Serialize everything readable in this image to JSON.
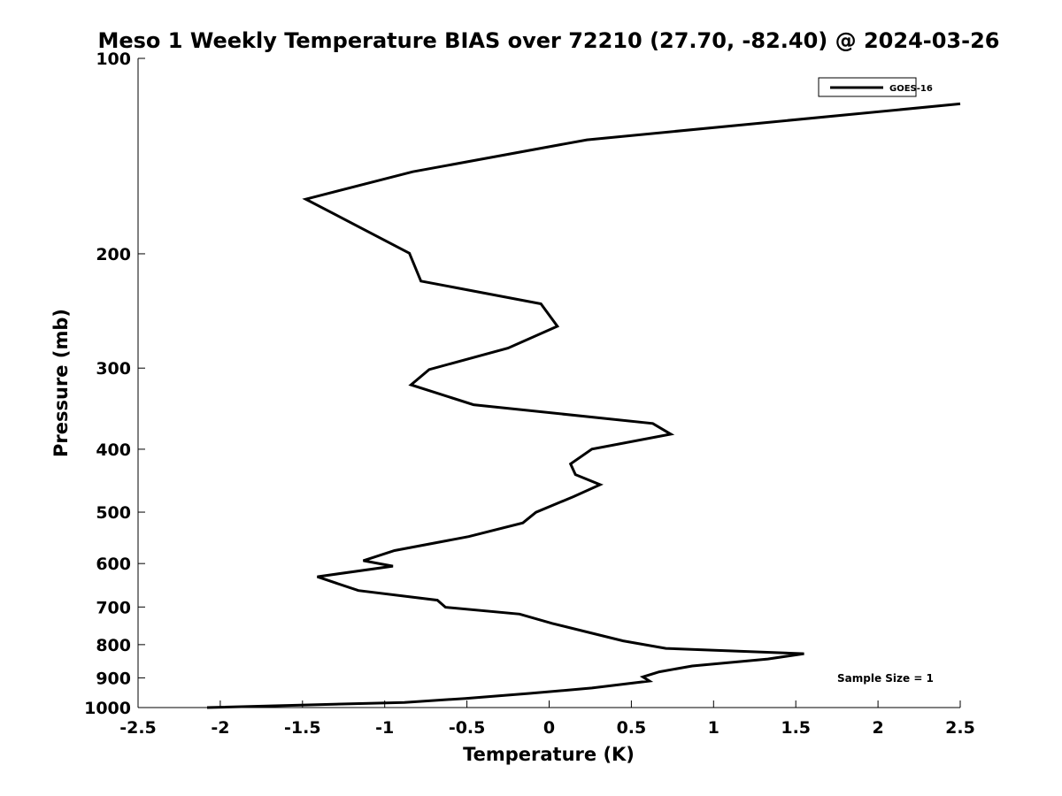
{
  "chart_data": {
    "type": "line",
    "title": "Meso 1 Weekly Temperature BIAS over 72210 (27.70, -82.40) @ 2024-03-26",
    "xlabel": "Temperature (K)",
    "ylabel": "Pressure (mb)",
    "xlim": [
      -2.5,
      2.5
    ],
    "ylim": [
      100,
      1000
    ],
    "y_scale": "log",
    "y_reversed": true,
    "x_ticks": [
      "-2.5",
      "-2",
      "-1.5",
      "-1",
      "-0.5",
      "0",
      "0.5",
      "1",
      "1.5",
      "2",
      "2.5"
    ],
    "x_tick_values": [
      -2.5,
      -2,
      -1.5,
      -1,
      -0.5,
      0,
      0.5,
      1,
      1.5,
      2,
      2.5
    ],
    "y_ticks": [
      "100",
      "200",
      "300",
      "400",
      "500",
      "600",
      "700",
      "800",
      "900",
      "1000"
    ],
    "y_tick_values": [
      100,
      200,
      300,
      400,
      500,
      600,
      700,
      800,
      900,
      1000
    ],
    "grid": false,
    "legend_position": "top-right",
    "series": [
      {
        "name": "GOES-16",
        "color": "#000000",
        "points": [
          [
            2.5,
            117.5
          ],
          [
            0.23,
            133.5
          ],
          [
            -0.83,
            149.5
          ],
          [
            -1.48,
            164.8
          ],
          [
            -0.85,
            199.6
          ],
          [
            -0.78,
            220.3
          ],
          [
            -0.05,
            238.8
          ],
          [
            0.05,
            258.6
          ],
          [
            -0.25,
            279.5
          ],
          [
            -0.73,
            301.5
          ],
          [
            -0.84,
            318.3
          ],
          [
            -0.46,
            341.6
          ],
          [
            0.63,
            365.1
          ],
          [
            0.74,
            379.2
          ],
          [
            0.26,
            399.9
          ],
          [
            0.13,
            421.4
          ],
          [
            0.16,
            437.6
          ],
          [
            0.31,
            453.6
          ],
          [
            0.15,
            473.1
          ],
          [
            -0.08,
            500.2
          ],
          [
            -0.16,
            519.4
          ],
          [
            -0.49,
            545.3
          ],
          [
            -0.94,
            573.0
          ],
          [
            -1.13,
            593.9
          ],
          [
            -0.95,
            605.6
          ],
          [
            -1.41,
            628.7
          ],
          [
            -1.16,
            660.3
          ],
          [
            -0.68,
            683.2
          ],
          [
            -0.63,
            700.6
          ],
          [
            -0.18,
            717.8
          ],
          [
            0.02,
            742.0
          ],
          [
            0.24,
            765.9
          ],
          [
            0.45,
            789.3
          ],
          [
            0.71,
            810.7
          ],
          [
            1.55,
            826.0
          ],
          [
            1.33,
            841.7
          ],
          [
            0.87,
            863.0
          ],
          [
            0.67,
            881.0
          ],
          [
            0.57,
            897.0
          ],
          [
            0.61,
            910.3
          ],
          [
            0.26,
            932.9
          ],
          [
            -0.12,
            950.9
          ],
          [
            -0.51,
            968.1
          ],
          [
            -0.88,
            982.1
          ],
          [
            -2.08,
            1000.0
          ]
        ]
      }
    ],
    "annotations": [
      "Sample Size = 1"
    ]
  }
}
